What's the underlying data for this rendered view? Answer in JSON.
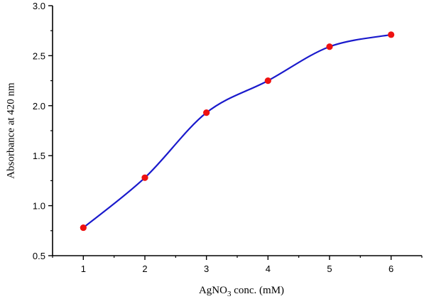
{
  "chart_data": {
    "type": "line",
    "title": "",
    "xlabel_parts": {
      "main": "AgNO",
      "subscript": "3",
      "rest": " conc. (mM)"
    },
    "ylabel": "Absorbance at 420 nm",
    "x": [
      1,
      2,
      3,
      4,
      5,
      6
    ],
    "series": [
      {
        "values": [
          0.78,
          1.28,
          1.93,
          2.25,
          2.59,
          2.71
        ]
      }
    ],
    "xlim": [
      0.5,
      6.5
    ],
    "ylim": [
      0.5,
      3.0
    ],
    "xticks": [
      "1",
      "2",
      "3",
      "4",
      "5",
      "6"
    ],
    "yticks": [
      "0.5",
      "1.0",
      "1.5",
      "2.0",
      "2.5",
      "3.0"
    ],
    "grid": false,
    "line_color": "#1a1acc",
    "marker_color": "#ee1111",
    "smooth": true
  }
}
